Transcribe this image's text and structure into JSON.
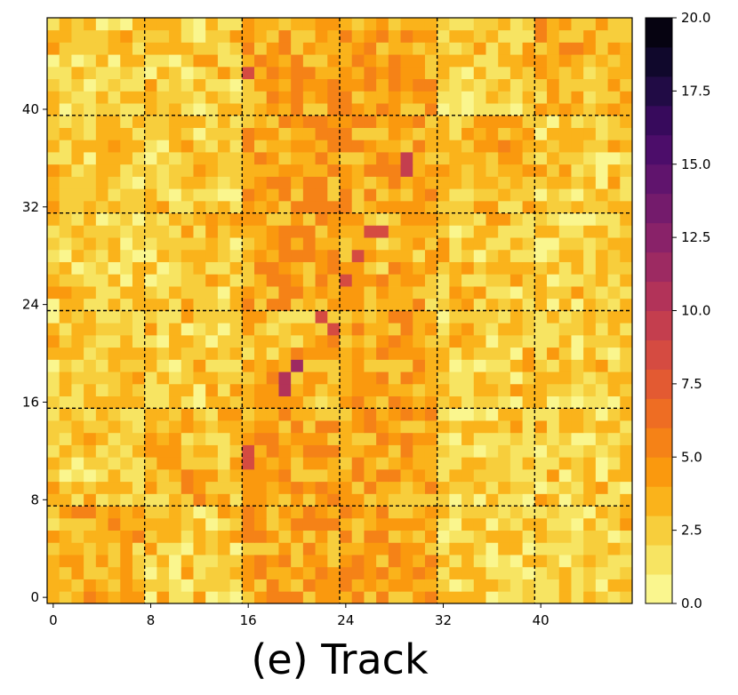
{
  "chart_data": {
    "type": "heatmap",
    "title": "(e) Track",
    "xlabel": "",
    "ylabel": "",
    "n_rows": 48,
    "n_cols": 48,
    "x_ticks": [
      0,
      8,
      16,
      24,
      32,
      40
    ],
    "y_ticks": [
      0,
      8,
      16,
      24,
      32,
      40
    ],
    "x_tick_labels": [
      "0",
      "8",
      "16",
      "24",
      "32",
      "40"
    ],
    "y_tick_labels": [
      "0",
      "8",
      "16",
      "24",
      "32",
      "40"
    ],
    "block_separators": [
      7.5,
      15.5,
      23.5,
      31.5,
      39.5
    ],
    "origin": "lower",
    "colormap": "inferno_r",
    "colorbar": {
      "min": 0.0,
      "max": 20.0,
      "levels": 20,
      "ticks": [
        0.0,
        2.5,
        5.0,
        7.5,
        10.0,
        12.5,
        15.0,
        17.5,
        20.0
      ],
      "tick_labels": [
        "0.0",
        "2.5",
        "5.0",
        "7.5",
        "10.0",
        "12.5",
        "15.0",
        "17.5",
        "20.0"
      ]
    },
    "value_range_observed": [
      0,
      11
    ],
    "notable_cells": [
      {
        "row": 19,
        "col": 20,
        "value": 11
      },
      {
        "row": 18,
        "col": 19,
        "value": 10
      },
      {
        "row": 17,
        "col": 19,
        "value": 10
      },
      {
        "row": 36,
        "col": 29,
        "value": 9
      },
      {
        "row": 35,
        "col": 29,
        "value": 9
      },
      {
        "row": 43,
        "col": 16,
        "value": 8
      },
      {
        "row": 11,
        "col": 16,
        "value": 8
      },
      {
        "row": 12,
        "col": 16,
        "value": 8
      },
      {
        "row": 22,
        "col": 23,
        "value": 8
      },
      {
        "row": 23,
        "col": 22,
        "value": 8
      },
      {
        "row": 26,
        "col": 24,
        "value": 8
      },
      {
        "row": 28,
        "col": 25,
        "value": 8
      },
      {
        "row": 30,
        "col": 26,
        "value": 8
      },
      {
        "row": 30,
        "col": 27,
        "value": 8
      }
    ],
    "block_pattern_note": "Blocks indexed by tile (row_tile, col_tile) of size 8; diagonal and column-16..24 tiles are higher valued."
  }
}
